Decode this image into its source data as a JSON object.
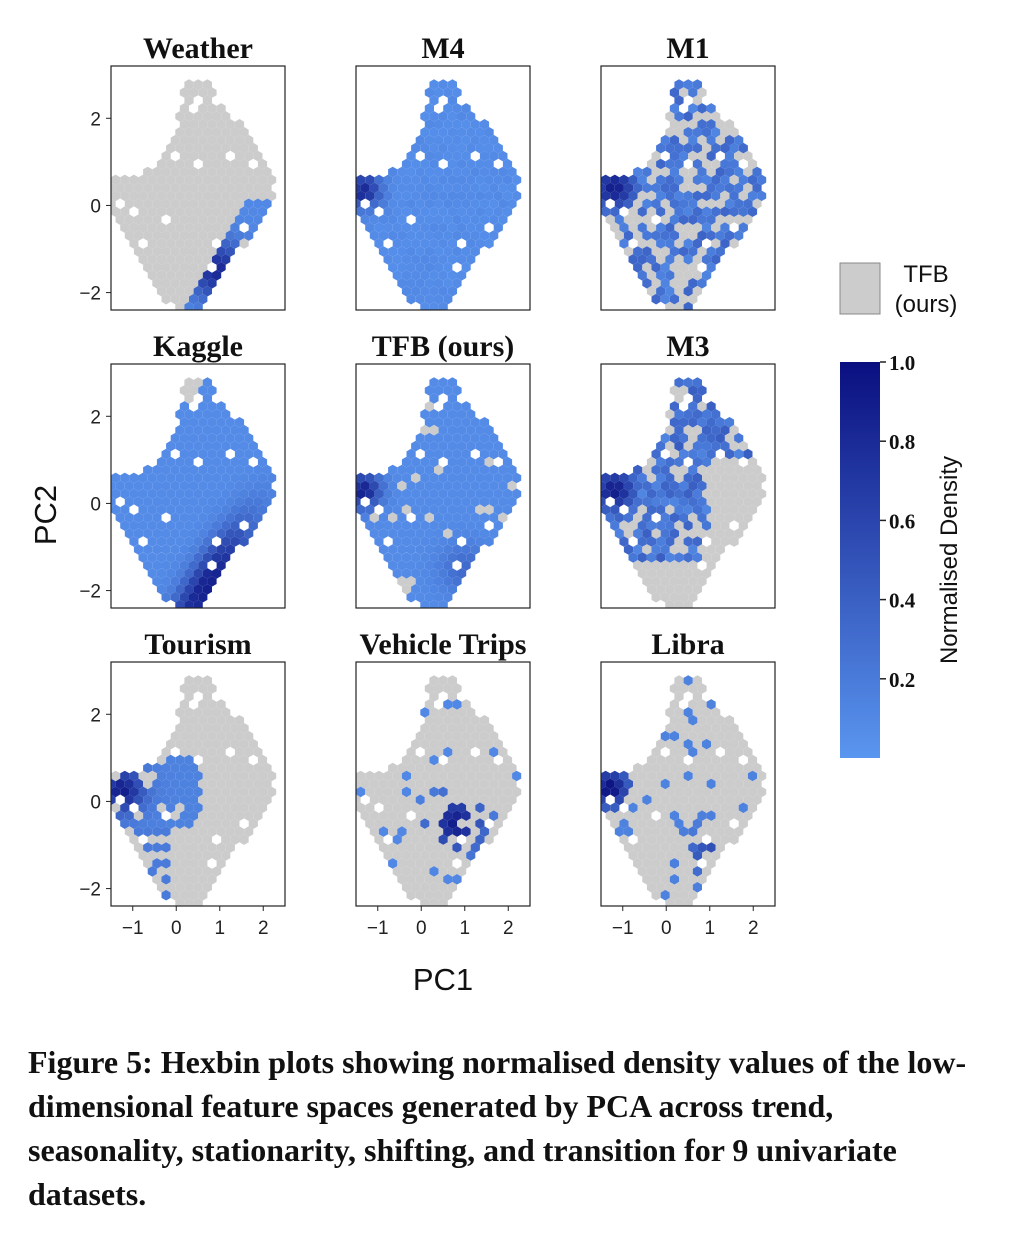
{
  "chart_data": {
    "type": "hexbin",
    "xlabel": "PC1",
    "ylabel": "PC2",
    "xlim": [
      -1.5,
      2.5
    ],
    "ylim": [
      -2.4,
      3.2
    ],
    "xticks": [
      -1,
      0,
      1,
      2
    ],
    "yticks": [
      -2,
      0,
      2
    ],
    "xtick_labels": [
      "−1",
      "0",
      "1",
      "2"
    ],
    "ytick_labels": [
      "−2",
      "0",
      "2"
    ],
    "background_series": "TFB (ours)",
    "legend": {
      "label_line1": "TFB",
      "label_line2": "(ours)",
      "color": "#cccccc"
    },
    "colorbar": {
      "label": "Normalised Density",
      "range": [
        0.0,
        1.0
      ],
      "ticks": [
        0.2,
        0.4,
        0.6,
        0.8,
        1.0
      ],
      "tick_labels": [
        "0.2",
        "0.4",
        "0.6",
        "0.8",
        "1.0"
      ],
      "color_low": "#5a96f0",
      "color_high": "#0a0f80"
    },
    "panels": [
      {
        "title": "Weather",
        "coverage": "partial",
        "hotspot": [
          0.9,
          -1.5
        ],
        "description_points": [
          [
            0.9,
            -1.5
          ],
          [
            0.6,
            -1.0
          ],
          [
            1.2,
            -0.6
          ],
          [
            1.6,
            0.0
          ]
        ]
      },
      {
        "title": "M4",
        "coverage": "full",
        "hotspot": [
          -1.3,
          0.4
        ]
      },
      {
        "title": "M1",
        "coverage": "scattered",
        "hotspot": [
          -1.2,
          0.4
        ]
      },
      {
        "title": "Kaggle",
        "coverage": "full",
        "hotspot": [
          0.7,
          -1.9
        ]
      },
      {
        "title": "TFB (ours)",
        "coverage": "full",
        "hotspot": [
          -1.3,
          0.3
        ]
      },
      {
        "title": "M3",
        "coverage": "scattered",
        "hotspot": [
          -1.2,
          0.3
        ]
      },
      {
        "title": "Tourism",
        "coverage": "cluster",
        "hotspot": [
          -1.2,
          0.3
        ]
      },
      {
        "title": "Vehicle Trips",
        "coverage": "sparse",
        "hotspot": [
          0.8,
          -0.5
        ]
      },
      {
        "title": "Libra",
        "coverage": "sparse",
        "hotspot": [
          -1.3,
          0.3
        ]
      }
    ]
  },
  "caption": "Figure 5: Hexbin plots showing normalised density values of the low-dimensional feature spaces generated by PCA across trend, seasonality, stationarity, shifting, and transition for 9 univariate datasets."
}
